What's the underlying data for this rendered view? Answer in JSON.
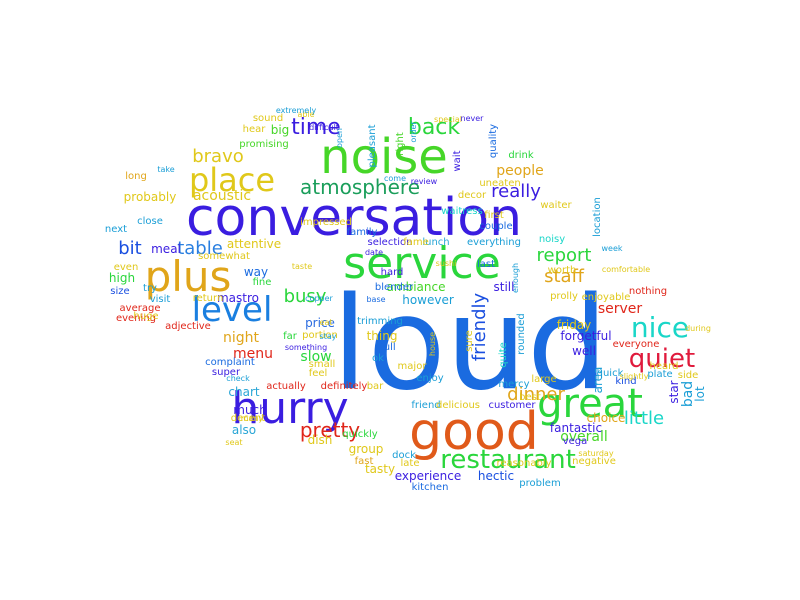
{
  "words": [
    {
      "text": "loud",
      "color": "#1a6be0"
    },
    {
      "text": "conversation",
      "color": "#3a1de0"
    },
    {
      "text": "noise",
      "color": "#46d628"
    },
    {
      "text": "good",
      "color": "#e05a1a"
    },
    {
      "text": "service",
      "color": "#2ad63c"
    },
    {
      "text": "hurry",
      "color": "#3a1de0"
    },
    {
      "text": "plus",
      "color": "#e0a51a"
    },
    {
      "text": "place",
      "color": "#e0c81a"
    },
    {
      "text": "great",
      "color": "#2ad63c"
    },
    {
      "text": "level",
      "color": "#1a7fe0"
    },
    {
      "text": "restaurant",
      "color": "#2ad63c"
    },
    {
      "text": "nice",
      "color": "#1ad6c8"
    },
    {
      "text": "quiet",
      "color": "#e01a3c"
    },
    {
      "text": "pretty",
      "color": "#e0261a"
    },
    {
      "text": "atmosphere",
      "color": "#1a9e5a"
    },
    {
      "text": "time",
      "color": "#3a1de0"
    },
    {
      "text": "back",
      "color": "#2ad63c"
    },
    {
      "text": "bravo",
      "color": "#e0c81a"
    },
    {
      "text": "table",
      "color": "#2a7fe0"
    },
    {
      "text": "bit",
      "color": "#1a4fe0"
    },
    {
      "text": "report",
      "color": "#2ad63c"
    },
    {
      "text": "staff",
      "color": "#e0a51a"
    },
    {
      "text": "little",
      "color": "#1ad6c8"
    },
    {
      "text": "busy",
      "color": "#2ad63c"
    },
    {
      "text": "dinner",
      "color": "#e0a51a"
    },
    {
      "text": "friendly",
      "color": "#1a4fe0"
    },
    {
      "text": "really",
      "color": "#3a1de0"
    },
    {
      "text": "people",
      "color": "#e0a51a"
    },
    {
      "text": "night",
      "color": "#e0a51a"
    },
    {
      "text": "menu",
      "color": "#e0261a"
    },
    {
      "text": "slow",
      "color": "#2ad63c"
    },
    {
      "text": "server",
      "color": "#e0261a"
    },
    {
      "text": "bad",
      "color": "#1a9ed6"
    },
    {
      "text": "overall",
      "color": "#46d628"
    },
    {
      "text": "acoustic",
      "color": "#e0c81a"
    },
    {
      "text": "attentive",
      "color": "#e0c81a"
    },
    {
      "text": "way",
      "color": "#1a6be0"
    },
    {
      "text": "price",
      "color": "#2a6be0"
    },
    {
      "text": "chart",
      "color": "#2aa6d6"
    },
    {
      "text": "much",
      "color": "#3a1de0"
    },
    {
      "text": "also",
      "color": "#2aa6d6"
    },
    {
      "text": "dish",
      "color": "#e0c81a"
    },
    {
      "text": "group",
      "color": "#e0c81a"
    },
    {
      "text": "fast",
      "color": "#e0a51a"
    },
    {
      "text": "tasty",
      "color": "#e0c81a"
    },
    {
      "text": "experience",
      "color": "#3a1de0"
    },
    {
      "text": "kitchen",
      "color": "#1a6be0"
    },
    {
      "text": "hectic",
      "color": "#1a4fe0"
    },
    {
      "text": "fantastic",
      "color": "#3a1de0"
    },
    {
      "text": "problem",
      "color": "#1a9ed6"
    },
    {
      "text": "choice",
      "color": "#e0a51a"
    },
    {
      "text": "well",
      "color": "#3a1de0"
    },
    {
      "text": "area",
      "color": "#1a9ed6"
    },
    {
      "text": "star",
      "color": "#3a1de0"
    },
    {
      "text": "lot",
      "color": "#1a9ed6"
    },
    {
      "text": "friday",
      "color": "#e0c81a"
    },
    {
      "text": "forgetful",
      "color": "#3a1de0"
    },
    {
      "text": "ambiance",
      "color": "#46d628"
    },
    {
      "text": "however",
      "color": "#1a9ed6"
    },
    {
      "text": "still",
      "color": "#3a1de0"
    },
    {
      "text": "probably",
      "color": "#e0c81a"
    },
    {
      "text": "even",
      "color": "#e0c81a"
    },
    {
      "text": "high",
      "color": "#2ad63c"
    },
    {
      "text": "size",
      "color": "#1a4fe0"
    },
    {
      "text": "next",
      "color": "#1a9ed6"
    },
    {
      "text": "meal",
      "color": "#3a1de0"
    },
    {
      "text": "try",
      "color": "#1a9ed6"
    },
    {
      "text": "close",
      "color": "#1a9ed6"
    },
    {
      "text": "big",
      "color": "#46d628"
    },
    {
      "text": "hear",
      "color": "#e0c81a"
    },
    {
      "text": "sound",
      "color": "#e0c81a"
    },
    {
      "text": "promising",
      "color": "#46d628"
    },
    {
      "text": "right",
      "color": "#46d628"
    },
    {
      "text": "pleasant",
      "color": "#1a9ed6"
    },
    {
      "text": "decor",
      "color": "#e0c81a"
    },
    {
      "text": "waitress",
      "color": "#1ad6c8"
    },
    {
      "text": "first",
      "color": "#e0c81a"
    },
    {
      "text": "couple",
      "color": "#1a6be0"
    },
    {
      "text": "lunch",
      "color": "#2aa6d6"
    },
    {
      "text": "everything",
      "color": "#1a9ed6"
    },
    {
      "text": "last",
      "color": "#1a6be0"
    },
    {
      "text": "waiter",
      "color": "#e0c81a"
    },
    {
      "text": "location",
      "color": "#1a9ed6"
    },
    {
      "text": "drink",
      "color": "#2ad63c"
    },
    {
      "text": "uneaten",
      "color": "#e0c81a"
    },
    {
      "text": "quality",
      "color": "#1a6be0"
    },
    {
      "text": "wait",
      "color": "#3a1de0"
    },
    {
      "text": "family",
      "color": "#1a6be0"
    },
    {
      "text": "selection",
      "color": "#3a1de0"
    },
    {
      "text": "fame",
      "color": "#e0c81a"
    },
    {
      "text": "noisy",
      "color": "#1ad6c8"
    },
    {
      "text": "worth",
      "color": "#e0c81a"
    },
    {
      "text": "prolly",
      "color": "#e0c81a"
    },
    {
      "text": "enjoyable",
      "color": "#e0c81a"
    },
    {
      "text": "quick",
      "color": "#1a9ed6"
    },
    {
      "text": "nothing",
      "color": "#e0261a"
    },
    {
      "text": "everyone",
      "color": "#e0261a"
    },
    {
      "text": "kind",
      "color": "#1a4fe0"
    },
    {
      "text": "plate",
      "color": "#1a9ed6"
    },
    {
      "text": "side",
      "color": "#e0c81a"
    },
    {
      "text": "heard",
      "color": "#e0c81a"
    },
    {
      "text": "mastro",
      "color": "#3a1de0"
    },
    {
      "text": "return",
      "color": "#e0c81a"
    },
    {
      "text": "visit",
      "color": "#1a9ed6"
    },
    {
      "text": "average",
      "color": "#e0261a"
    },
    {
      "text": "evening",
      "color": "#e0261a"
    },
    {
      "text": "adjective",
      "color": "#e0261a"
    },
    {
      "text": "huge",
      "color": "#e0c81a"
    },
    {
      "text": "long",
      "color": "#e0a51a"
    },
    {
      "text": "fine",
      "color": "#2ad63c"
    },
    {
      "text": "portion",
      "color": "#e0c81a"
    },
    {
      "text": "hard",
      "color": "#3a1de0"
    },
    {
      "text": "blender",
      "color": "#1a6be0"
    },
    {
      "text": "trimming",
      "color": "#1a9ed6"
    },
    {
      "text": "thing",
      "color": "#e0c81a"
    },
    {
      "text": "full",
      "color": "#1a6be0"
    },
    {
      "text": "ok",
      "color": "#1a9ed6"
    },
    {
      "text": "major",
      "color": "#e0c81a"
    },
    {
      "text": "enjoy",
      "color": "#1a9ed6"
    },
    {
      "text": "bar",
      "color": "#e0c81a"
    },
    {
      "text": "friend",
      "color": "#1a9ed6"
    },
    {
      "text": "quite",
      "color": "#1ad6c8"
    },
    {
      "text": "sure",
      "color": "#e0c81a"
    },
    {
      "text": "mercy",
      "color": "#1a9ed6"
    },
    {
      "text": "large",
      "color": "#e0c81a"
    },
    {
      "text": "best",
      "color": "#e0c81a"
    },
    {
      "text": "customer",
      "color": "#3a1de0"
    },
    {
      "text": "delicious",
      "color": "#e0c81a"
    },
    {
      "text": "late",
      "color": "#e0c81a"
    },
    {
      "text": "dock",
      "color": "#1a9ed6"
    },
    {
      "text": "quickly",
      "color": "#2ad63c"
    },
    {
      "text": "reasonably",
      "color": "#e0c81a"
    },
    {
      "text": "vega",
      "color": "#3a1de0"
    },
    {
      "text": "complaint",
      "color": "#1a6be0"
    },
    {
      "text": "super",
      "color": "#3a1de0"
    },
    {
      "text": "decent",
      "color": "#e0c81a"
    },
    {
      "text": "feel",
      "color": "#e0c81a"
    },
    {
      "text": "small",
      "color": "#e0c81a"
    },
    {
      "text": "actually",
      "color": "#e0261a"
    },
    {
      "text": "definitely",
      "color": "#e0261a"
    },
    {
      "text": "somewhat",
      "color": "#e0c81a"
    },
    {
      "text": "far",
      "color": "#2ad63c"
    },
    {
      "text": "something",
      "color": "#3a1de0"
    },
    {
      "text": "rounded",
      "color": "#1a9ed6"
    },
    {
      "text": "negative",
      "color": "#e0c81a"
    },
    {
      "text": "impressed",
      "color": "#e0c81a"
    },
    {
      "text": "open",
      "color": "#1a9ed6"
    },
    {
      "text": "review",
      "color": "#3a1de0"
    },
    {
      "text": "special",
      "color": "#e0c81a"
    },
    {
      "text": "eat",
      "color": "#e0c81a"
    },
    {
      "text": "taste",
      "color": "#e0c81a"
    },
    {
      "text": "date",
      "color": "#3a1de0"
    },
    {
      "text": "sushi",
      "color": "#e0c81a"
    },
    {
      "text": "house",
      "color": "#e0c81a"
    },
    {
      "text": "enough",
      "color": "#1a9ed6"
    },
    {
      "text": "saturday",
      "color": "#e0c81a"
    },
    {
      "text": "many",
      "color": "#e0c81a"
    },
    {
      "text": "check",
      "color": "#1a9ed6"
    },
    {
      "text": "able",
      "color": "#e0c81a"
    },
    {
      "text": "extremely",
      "color": "#1a9ed6"
    },
    {
      "text": "slightly",
      "color": "#e0c81a"
    },
    {
      "text": "comfortable",
      "color": "#e0c81a"
    },
    {
      "text": "during",
      "color": "#e0c81a"
    },
    {
      "text": "seat",
      "color": "#e0c81a"
    },
    {
      "text": "come",
      "color": "#1a9ed6"
    },
    {
      "text": "never",
      "color": "#3a1de0"
    },
    {
      "text": "order",
      "color": "#1a9ed6"
    },
    {
      "text": "difficult",
      "color": "#3a1de0"
    },
    {
      "text": "stay",
      "color": "#1a9ed6"
    },
    {
      "text": "copper",
      "color": "#1a9ed6"
    },
    {
      "text": "take",
      "color": "#1a9ed6"
    },
    {
      "text": "week",
      "color": "#1a9ed6"
    },
    {
      "text": "base",
      "color": "#1a6be0"
    },
    {
      "text": "mean",
      "color": "#1a9ed6"
    }
  ]
}
